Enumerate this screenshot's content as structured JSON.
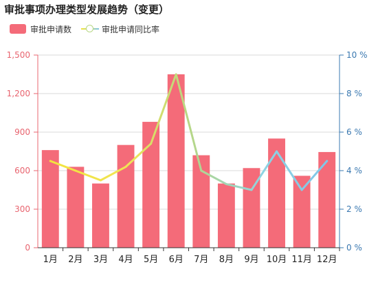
{
  "chart_data": {
    "type": "bar",
    "title": "审批事项办理类型发展趋势（变更）",
    "categories": [
      "1月",
      "2月",
      "3月",
      "4月",
      "5月",
      "6月",
      "7月",
      "8月",
      "9月",
      "10月",
      "11月",
      "12月"
    ],
    "series": [
      {
        "name": "审批申请数",
        "type": "bar",
        "axis": "left",
        "values": [
          760,
          630,
          500,
          800,
          980,
          1350,
          720,
          500,
          620,
          850,
          560,
          745
        ]
      },
      {
        "name": "审批申请同比率",
        "type": "line",
        "axis": "right",
        "unit": "%",
        "values": [
          4.5,
          4.0,
          3.5,
          4.2,
          5.4,
          9.0,
          4.0,
          3.3,
          3.0,
          5.0,
          3.0,
          4.5
        ]
      }
    ],
    "y_left": {
      "min": 0,
      "max": 1500,
      "ticks": [
        "0",
        "300",
        "600",
        "900",
        "1,200",
        "1,500"
      ],
      "tick_values": [
        0,
        300,
        600,
        900,
        1200,
        1500
      ]
    },
    "y_right": {
      "min": 0,
      "max": 10,
      "ticks": [
        "0 %",
        "2 %",
        "4 %",
        "6 %",
        "8 %",
        "10 %"
      ],
      "tick_values": [
        0,
        2,
        4,
        6,
        8,
        10
      ]
    },
    "grid": true,
    "legend_position": "top-left"
  },
  "colors": {
    "bar": "#f46b79",
    "left_axis": "#e8646f",
    "right_axis": "#3a78b0",
    "line_gradient": [
      "#f3e43a",
      "#f0e454",
      "#b7d785",
      "#8ed3e3",
      "#7dc3e8"
    ],
    "grid": "#d9d9d9",
    "label": "#222222"
  }
}
